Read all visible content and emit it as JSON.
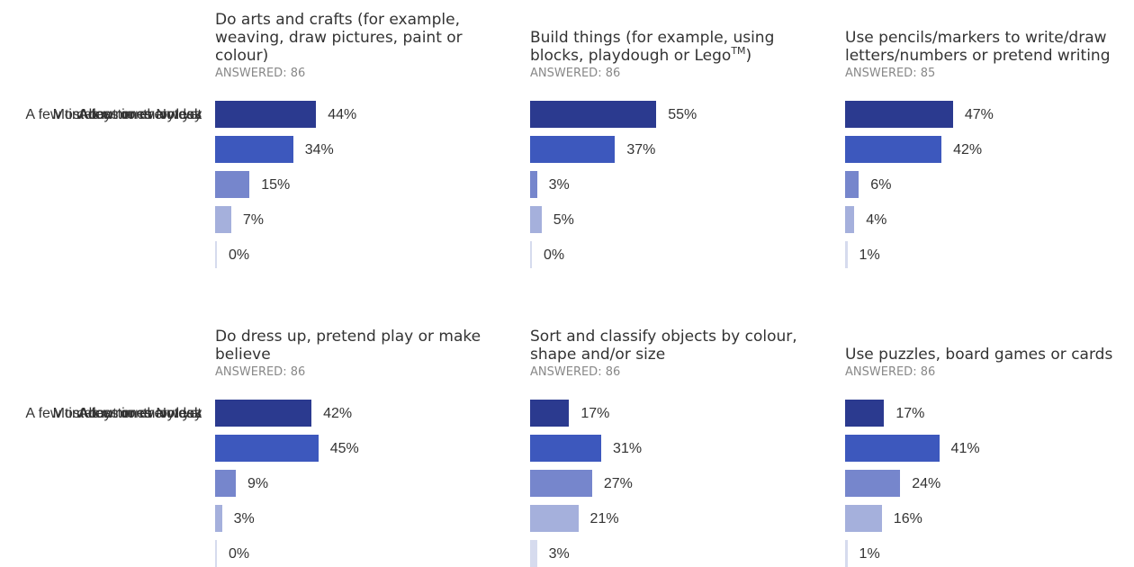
{
  "chart_data": {
    "type": "bar",
    "categories": [
      "Most days or every day",
      "A few times a week",
      "About once a week",
      "A few times a month or less",
      "Not yet"
    ],
    "colors": [
      "#2b3a8f",
      "#3d58bd",
      "#7686cc",
      "#a5b0dc",
      "#d6dbee"
    ],
    "xlim": [
      0,
      100
    ],
    "panels": [
      {
        "title": "Do arts and crafts (for example, weaving, draw pictures, paint or colour)",
        "answered": "ANSWERED: 86",
        "values": [
          44,
          34,
          15,
          7,
          0
        ],
        "labels": [
          "44%",
          "34%",
          "15%",
          "7%",
          "0%"
        ]
      },
      {
        "title": "Build things (for example, using blocks, playdough or Lego",
        "title_sup": "TM",
        "title_end": ")",
        "answered": "ANSWERED: 86",
        "values": [
          55,
          37,
          3,
          5,
          0
        ],
        "labels": [
          "55%",
          "37%",
          "3%",
          "5%",
          "0%"
        ]
      },
      {
        "title": "Use pencils/markers to write/draw letters/numbers or pretend writing",
        "answered": "ANSWERED: 85",
        "values": [
          47,
          42,
          6,
          4,
          1
        ],
        "labels": [
          "47%",
          "42%",
          "6%",
          "4%",
          "1%"
        ]
      },
      {
        "title": "Do dress up, pretend play or make believe",
        "answered": "ANSWERED: 86",
        "values": [
          42,
          45,
          9,
          3,
          0
        ],
        "labels": [
          "42%",
          "45%",
          "9%",
          "3%",
          "0%"
        ]
      },
      {
        "title": "Sort and classify objects by colour, shape and/or size",
        "answered": "ANSWERED: 86",
        "values": [
          17,
          31,
          27,
          21,
          3
        ],
        "labels": [
          "17%",
          "31%",
          "27%",
          "21%",
          "3%"
        ]
      },
      {
        "title": "Use puzzles, board games or cards",
        "answered": "ANSWERED: 86",
        "values": [
          17,
          41,
          24,
          16,
          1
        ],
        "labels": [
          "17%",
          "41%",
          "24%",
          "16%",
          "1%"
        ]
      }
    ]
  }
}
